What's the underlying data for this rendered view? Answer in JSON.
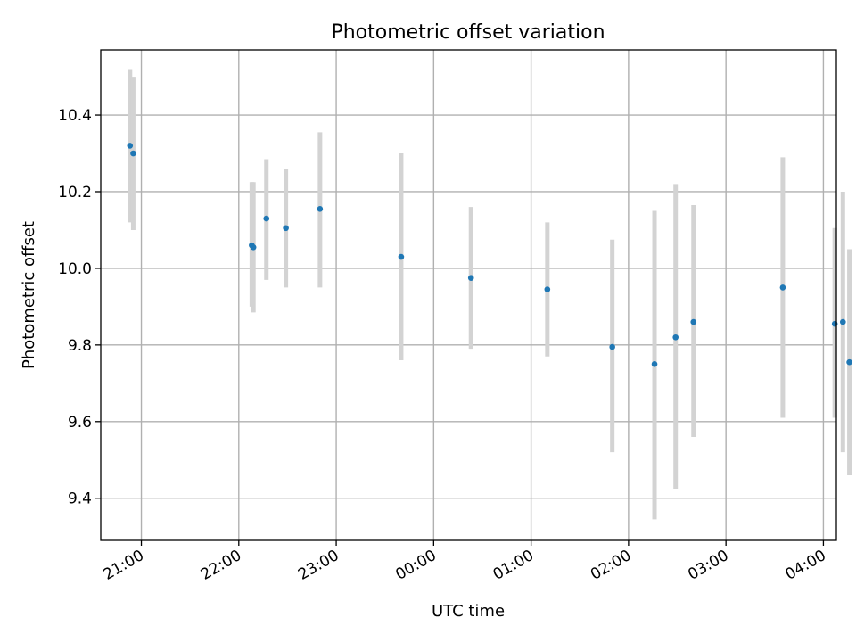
{
  "chart_data": {
    "type": "scatter",
    "title": "Photometric offset variation",
    "xlabel": "UTC time",
    "ylabel": "Photometric offset",
    "x_axis_kind": "time",
    "x_start_clock": "20:35",
    "x_end_clock": "04:08",
    "xticks": [
      "21:00",
      "22:00",
      "23:00",
      "00:00",
      "01:00",
      "02:00",
      "03:00",
      "04:00"
    ],
    "ylim": [
      9.29,
      10.57
    ],
    "yticks": [
      "9.4",
      "9.6",
      "9.8",
      "10.0",
      "10.2",
      "10.4"
    ],
    "grid": true,
    "point_color": "#1f77b4",
    "errorbar_color": "#d3d3d3",
    "series": [
      {
        "x": [
          "20:53",
          "20:55",
          "22:08",
          "22:09",
          "22:17",
          "22:29",
          "22:50",
          "23:40",
          "00:23",
          "01:10",
          "01:50",
          "02:16",
          "02:29",
          "02:40",
          "03:35",
          "04:07",
          "04:12",
          "04:16"
        ],
        "y": [
          10.32,
          10.3,
          10.06,
          10.055,
          10.13,
          10.105,
          10.155,
          10.03,
          9.975,
          9.945,
          9.795,
          9.75,
          9.82,
          9.86,
          9.95,
          9.855,
          9.86,
          9.755
        ],
        "y_low": [
          10.12,
          10.1,
          9.9,
          9.885,
          9.97,
          9.95,
          9.95,
          9.76,
          9.79,
          9.77,
          9.52,
          9.345,
          9.425,
          9.56,
          9.61,
          9.61,
          9.52,
          9.46
        ],
        "y_high": [
          10.52,
          10.5,
          10.225,
          10.225,
          10.285,
          10.26,
          10.355,
          10.3,
          10.16,
          10.12,
          10.075,
          10.15,
          10.22,
          10.165,
          10.29,
          10.105,
          10.2,
          10.05
        ]
      }
    ]
  }
}
